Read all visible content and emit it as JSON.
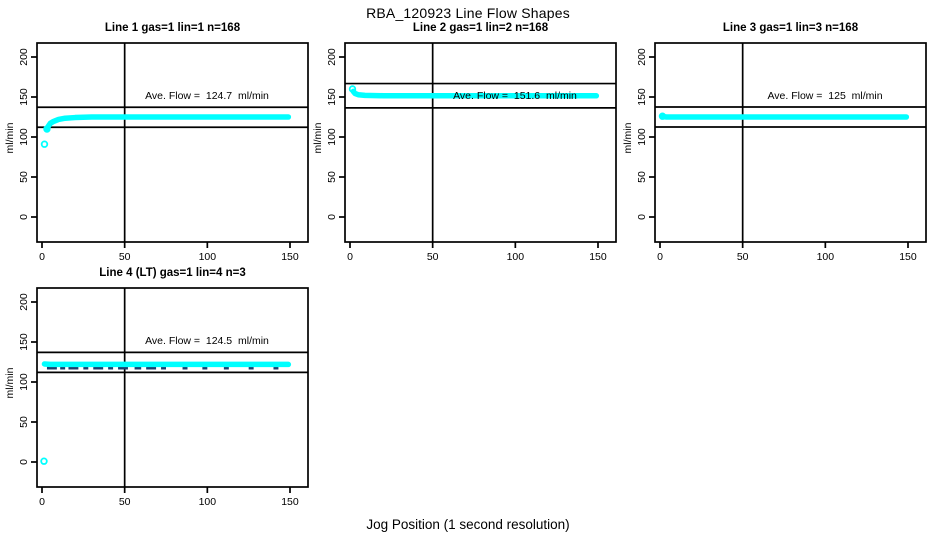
{
  "page": {
    "title": "RBA_120923  Line Flow Shapes",
    "xlabel": "Jog Position (1 second resolution)"
  },
  "chart_data": {
    "type": "scatter",
    "shared": {
      "ylabel": "ml/min",
      "x_ticks": [
        0,
        50,
        100,
        150
      ],
      "y_ticks": [
        0,
        50,
        100,
        150,
        200
      ],
      "xlim": [
        0,
        155
      ],
      "ylim": [
        0,
        210
      ],
      "grid": false,
      "vline_x": 50,
      "point_color": "#00ffff",
      "axis_color": "#000000"
    },
    "panels": [
      {
        "title": "Line 1 gas=1 lin=1 n=168",
        "n": 168,
        "ave_flow": 124.7,
        "annotation": "Ave. Flow =  124.7  ml/min",
        "hlines": [
          137.2,
          112.2
        ],
        "profile": [
          [
            3,
            110
          ],
          [
            4,
            114
          ],
          [
            5,
            117
          ],
          [
            7,
            119.5
          ],
          [
            10,
            122
          ],
          [
            14,
            123.5
          ],
          [
            20,
            124.3
          ],
          [
            30,
            125
          ],
          [
            149,
            125
          ]
        ],
        "markers": [
          [
            1.5,
            91
          ],
          [
            3,
            110
          ]
        ]
      },
      {
        "title": "Line 2 gas=1 lin=2 n=168",
        "n": 168,
        "ave_flow": 151.6,
        "annotation": "Ave. Flow =  151.6  ml/min",
        "hlines": [
          166.8,
          136.4
        ],
        "profile": [
          [
            2,
            157
          ],
          [
            3,
            154.5
          ],
          [
            5,
            152.8
          ],
          [
            9,
            152
          ],
          [
            20,
            151.6
          ],
          [
            149,
            151.5
          ]
        ],
        "markers": [
          [
            1.5,
            160
          ]
        ]
      },
      {
        "title": "Line 3 gas=1 lin=3 n=168",
        "n": 168,
        "ave_flow": 125,
        "annotation": "Ave. Flow =  125  ml/min",
        "hlines": [
          137.5,
          112.5
        ],
        "profile": [
          [
            1.5,
            125.5
          ],
          [
            4,
            125
          ],
          [
            149,
            125
          ]
        ],
        "markers": [
          [
            1.5,
            126
          ]
        ]
      },
      {
        "title": "Line 4 (LT) gas=1 lin=4 n=3",
        "n": 3,
        "ave_flow": 124.5,
        "annotation": "Ave. Flow =  124.5  ml/min",
        "hlines": [
          137,
          112
        ],
        "profile": [
          [
            1.5,
            122.5
          ],
          [
            5,
            122
          ],
          [
            149,
            122
          ]
        ],
        "markers": [
          [
            1.2,
            1
          ]
        ],
        "underlay_marks": {
          "y": 117.5,
          "color": "#1d3f6e",
          "segments": [
            [
              3,
              9
            ],
            [
              11,
              14
            ],
            [
              16,
              22
            ],
            [
              25,
              28
            ],
            [
              31,
              37
            ],
            [
              40,
              43
            ],
            [
              46,
              52
            ],
            [
              56,
              60
            ],
            [
              63,
              69
            ],
            [
              72,
              75
            ],
            [
              85,
              88
            ],
            [
              97,
              100
            ],
            [
              110,
              113
            ],
            [
              125,
              128
            ],
            [
              140,
              143
            ]
          ]
        }
      }
    ]
  }
}
